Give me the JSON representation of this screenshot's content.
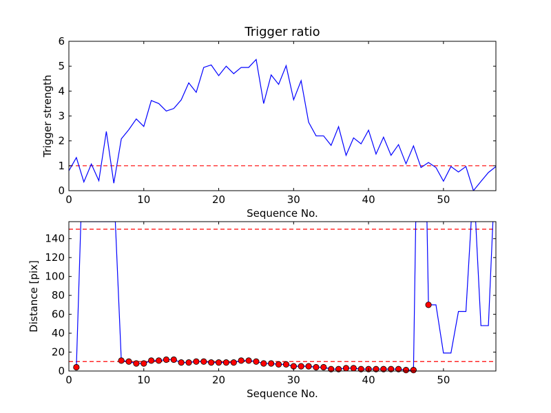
{
  "chart_data": [
    {
      "type": "line",
      "title": "Trigger ratio",
      "xlabel": "Sequence No.",
      "ylabel": "Trigger strength",
      "xlim": [
        0,
        57
      ],
      "ylim": [
        0,
        6
      ],
      "xticks": [
        0,
        10,
        20,
        30,
        40,
        50
      ],
      "yticks": [
        0,
        1,
        2,
        3,
        4,
        5,
        6
      ],
      "grid": false,
      "series": [
        {
          "style": "line",
          "color": "#0000ff",
          "x": [
            0,
            1,
            2,
            3,
            4,
            5,
            6,
            7,
            8,
            9,
            10,
            11,
            12,
            13,
            14,
            15,
            16,
            17,
            18,
            19,
            20,
            21,
            22,
            23,
            24,
            25,
            26,
            27,
            28,
            29,
            30,
            31,
            32,
            33,
            34,
            35,
            36,
            37,
            38,
            39,
            40,
            41,
            42,
            43,
            44,
            45,
            46,
            47,
            48,
            49,
            50,
            51,
            52,
            53,
            54,
            55,
            56,
            57
          ],
          "y": [
            0.8,
            1.33,
            0.35,
            1.07,
            0.4,
            2.38,
            0.3,
            2.08,
            2.45,
            2.88,
            2.58,
            3.62,
            3.5,
            3.2,
            3.3,
            3.65,
            4.33,
            3.95,
            4.95,
            5.05,
            4.62,
            5.0,
            4.7,
            4.95,
            4.95,
            5.27,
            3.5,
            4.65,
            4.27,
            5.02,
            3.65,
            4.42,
            2.75,
            2.2,
            2.2,
            1.82,
            2.57,
            1.42,
            2.12,
            1.88,
            2.43,
            1.47,
            2.15,
            1.42,
            1.85,
            1.08,
            1.8,
            0.93,
            1.13,
            0.93,
            0.38,
            0.97,
            0.75,
            0.97,
            0.0,
            0.37,
            0.73,
            0.97
          ]
        }
      ],
      "reference_lines": [
        {
          "axis": "y",
          "value": 1.0,
          "color": "#ff0000",
          "style": "dashed"
        }
      ]
    },
    {
      "type": "line",
      "title": "",
      "xlabel": "Sequence No.",
      "ylabel": "Distance [pix]",
      "xlim": [
        0,
        57
      ],
      "ylim": [
        0,
        158
      ],
      "xticks": [
        0,
        10,
        20,
        30,
        40,
        50
      ],
      "yticks": [
        0,
        20,
        40,
        60,
        80,
        100,
        120,
        140
      ],
      "grid": false,
      "series": [
        {
          "style": "line",
          "color": "#0000ff",
          "points": [
            [
              1,
              4
            ],
            [
              1.6,
              158
            ],
            [
              6.2,
              158
            ],
            [
              7,
              11
            ],
            [
              8,
              10
            ],
            [
              9,
              8
            ],
            [
              10,
              8
            ],
            [
              11,
              11
            ],
            [
              12,
              11
            ],
            [
              13,
              12
            ],
            [
              14,
              12
            ],
            [
              15,
              9
            ],
            [
              16,
              9
            ],
            [
              17,
              10
            ],
            [
              18,
              10
            ],
            [
              19,
              9
            ],
            [
              20,
              9
            ],
            [
              21,
              9
            ],
            [
              22,
              9
            ],
            [
              23,
              11
            ],
            [
              24,
              11
            ],
            [
              25,
              10
            ],
            [
              26,
              8
            ],
            [
              27,
              8
            ],
            [
              28,
              7
            ],
            [
              29,
              7
            ],
            [
              30,
              5
            ],
            [
              31,
              5
            ],
            [
              32,
              5
            ],
            [
              33,
              4
            ],
            [
              34,
              4
            ],
            [
              35,
              2
            ],
            [
              36,
              2
            ],
            [
              37,
              3
            ],
            [
              38,
              3
            ],
            [
              39,
              2
            ],
            [
              40,
              2
            ],
            [
              41,
              2
            ],
            [
              42,
              2
            ],
            [
              43,
              2
            ],
            [
              44,
              2
            ],
            [
              45,
              1
            ],
            [
              46,
              1
            ],
            [
              46.3,
              158
            ],
            [
              47.8,
              158
            ],
            [
              48,
              70
            ],
            [
              49,
              70
            ],
            [
              50,
              19
            ],
            [
              51,
              19
            ],
            [
              52,
              63
            ],
            [
              53,
              63
            ],
            [
              53.7,
              158
            ],
            [
              54.3,
              158
            ],
            [
              55,
              48
            ],
            [
              56,
              48
            ],
            [
              56.6,
              158
            ]
          ]
        },
        {
          "style": "markers",
          "marker": "circle",
          "color": "#ff0000",
          "x": [
            1,
            7,
            8,
            9,
            10,
            11,
            12,
            13,
            14,
            15,
            16,
            17,
            18,
            19,
            20,
            21,
            22,
            23,
            24,
            25,
            26,
            27,
            28,
            29,
            30,
            31,
            32,
            33,
            34,
            35,
            36,
            37,
            38,
            39,
            40,
            41,
            42,
            43,
            44,
            45,
            46,
            48
          ],
          "y": [
            4,
            11,
            10,
            8,
            8,
            11,
            11,
            12,
            12,
            9,
            9,
            10,
            10,
            9,
            9,
            9,
            9,
            11,
            11,
            10,
            8,
            8,
            7,
            7,
            5,
            5,
            5,
            4,
            4,
            2,
            2,
            3,
            3,
            2,
            2,
            2,
            2,
            2,
            2,
            1,
            1,
            70
          ]
        }
      ],
      "reference_lines": [
        {
          "axis": "y",
          "value": 150,
          "color": "#ff0000",
          "style": "dashed"
        },
        {
          "axis": "y",
          "value": 10,
          "color": "#ff0000",
          "style": "dashed"
        }
      ]
    }
  ]
}
